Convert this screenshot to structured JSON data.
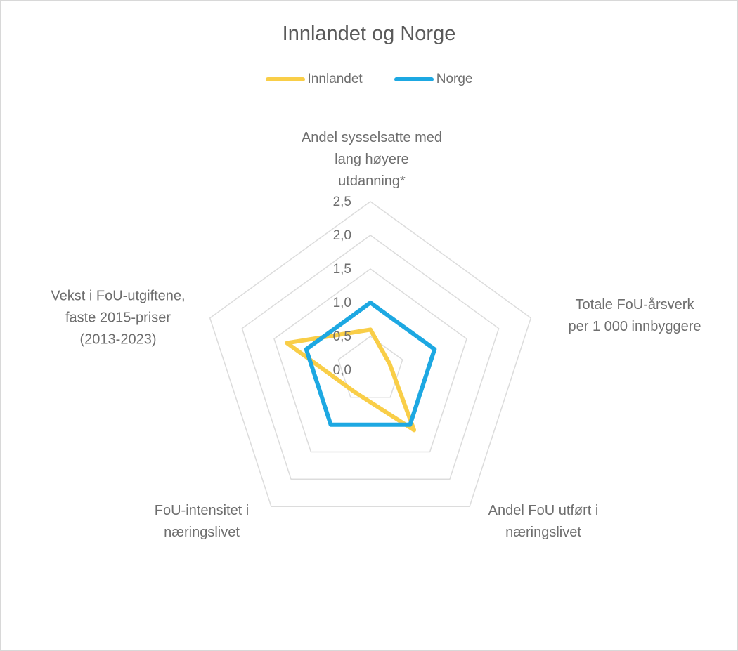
{
  "chart_data": {
    "type": "radar",
    "title": "Innlandet og Norge",
    "grid": {
      "shape": "pentagon",
      "rings": 5,
      "spokes": false,
      "color": "#dcdcdc"
    },
    "legend_position": "top",
    "scale": {
      "min": 0,
      "max": 2.5,
      "step": 0.5,
      "tick_labels": [
        "0,0",
        "0,5",
        "1,0",
        "1,5",
        "2,0",
        "2,5"
      ]
    },
    "axes": [
      {
        "label": "Andel sysselsatte med lang høyere utdanning*",
        "lines": [
          "Andel sysselsatte med",
          "lang høyere",
          "utdanning*"
        ]
      },
      {
        "label": "Totale FoU-årsverk per 1 000 innbyggere",
        "lines": [
          "Totale FoU-årsverk",
          "per 1 000 innbyggere"
        ]
      },
      {
        "label": "Andel FoU utført i næringslivet",
        "lines": [
          "Andel FoU utført i",
          "næringslivet"
        ]
      },
      {
        "label": "FoU-intensitet i næringslivet",
        "lines": [
          "FoU-intensitet i",
          "næringslivet"
        ]
      },
      {
        "label": "Vekst i FoU-utgiftene, faste 2015-priser (2013-2023)",
        "lines": [
          "Vekst i FoU-utgiftene,",
          "faste 2015-priser",
          "(2013-2023)"
        ]
      }
    ],
    "series": [
      {
        "name": "Innlandet",
        "color": "#F9CE48",
        "values": [
          0.6,
          0.3,
          1.1,
          0.4,
          1.3
        ]
      },
      {
        "name": "Norge",
        "color": "#1DA8E2",
        "values": [
          1.0,
          1.0,
          1.0,
          1.0,
          1.0
        ]
      }
    ]
  },
  "colors": {
    "title_text": "#5a5a5a",
    "label_text": "#6e6e6e",
    "grid": "#dcdcdc",
    "frame_border": "#d8d8d8",
    "background": "#ffffff"
  }
}
